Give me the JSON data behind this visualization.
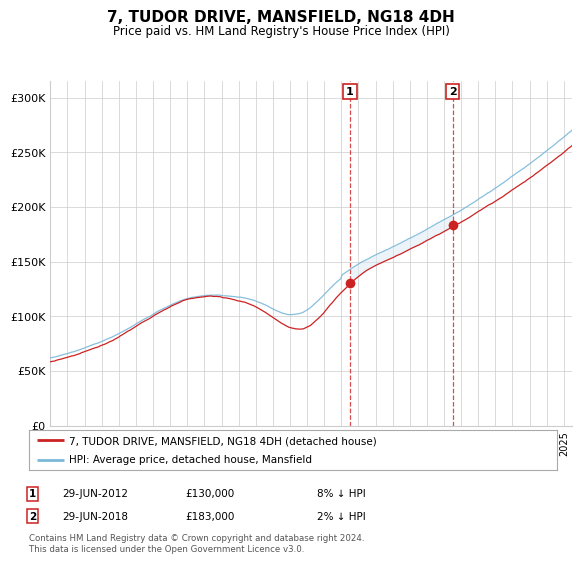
{
  "title": "7, TUDOR DRIVE, MANSFIELD, NG18 4DH",
  "subtitle": "Price paid vs. HM Land Registry's House Price Index (HPI)",
  "legend_line1": "7, TUDOR DRIVE, MANSFIELD, NG18 4DH (detached house)",
  "legend_line2": "HPI: Average price, detached house, Mansfield",
  "footnote": "Contains HM Land Registry data © Crown copyright and database right 2024.\nThis data is licensed under the Open Government Licence v3.0.",
  "transaction1_date": "29-JUN-2012",
  "transaction1_price": "£130,000",
  "transaction1_pct": "8% ↓ HPI",
  "transaction2_date": "29-JUN-2018",
  "transaction2_price": "£183,000",
  "transaction2_pct": "2% ↓ HPI",
  "hpi_line_color": "#7ab8d9",
  "price_color": "#cc2222",
  "shaded_color": "#daeaf5",
  "vline_color": "#cc2222",
  "yticks": [
    0,
    50000,
    100000,
    150000,
    200000,
    250000,
    300000
  ],
  "ylabels": [
    "£0",
    "£50K",
    "£100K",
    "£150K",
    "£200K",
    "£250K",
    "£300K"
  ],
  "ymax": 315000,
  "xmin": 1995,
  "xmax": 2025.5,
  "t1": 2012.5,
  "t2": 2018.5,
  "p1": 130000,
  "p2": 183000,
  "background_color": "#ffffff",
  "grid_color": "#cccccc"
}
